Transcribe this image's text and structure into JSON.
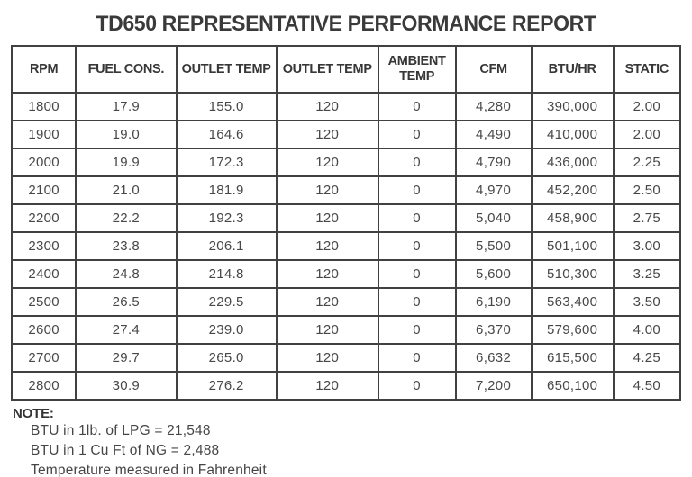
{
  "title": "TD650 REPRESENTATIVE PERFORMANCE REPORT",
  "table": {
    "columns": [
      "RPM",
      "FUEL CONS.",
      "OUTLET TEMP",
      "OUTLET TEMP",
      "AMBIENT TEMP",
      "CFM",
      "BTU/HR",
      "STATIC"
    ],
    "rows": [
      [
        "1800",
        "17.9",
        "155.0",
        "120",
        "0",
        "4,280",
        "390,000",
        "2.00"
      ],
      [
        "1900",
        "19.0",
        "164.6",
        "120",
        "0",
        "4,490",
        "410,000",
        "2.00"
      ],
      [
        "2000",
        "19.9",
        "172.3",
        "120",
        "0",
        "4,790",
        "436,000",
        "2.25"
      ],
      [
        "2100",
        "21.0",
        "181.9",
        "120",
        "0",
        "4,970",
        "452,200",
        "2.50"
      ],
      [
        "2200",
        "22.2",
        "192.3",
        "120",
        "0",
        "5,040",
        "458,900",
        "2.75"
      ],
      [
        "2300",
        "23.8",
        "206.1",
        "120",
        "0",
        "5,500",
        "501,100",
        "3.00"
      ],
      [
        "2400",
        "24.8",
        "214.8",
        "120",
        "0",
        "5,600",
        "510,300",
        "3.25"
      ],
      [
        "2500",
        "26.5",
        "229.5",
        "120",
        "0",
        "6,190",
        "563,400",
        "3.50"
      ],
      [
        "2600",
        "27.4",
        "239.0",
        "120",
        "0",
        "6,370",
        "579,600",
        "4.00"
      ],
      [
        "2700",
        "29.7",
        "265.0",
        "120",
        "0",
        "6,632",
        "615,500",
        "4.25"
      ],
      [
        "2800",
        "30.9",
        "276.2",
        "120",
        "0",
        "7,200",
        "650,100",
        "4.50"
      ]
    ]
  },
  "note": {
    "label": "NOTE:",
    "lines": [
      "BTU in 1lb. of LPG = 21,548",
      "BTU in 1 Cu Ft of NG = 2,488",
      "Temperature measured in Fahrenheit"
    ]
  },
  "colors": {
    "text": "#3d3d3d",
    "border": "#414141",
    "background": "#ffffff"
  }
}
